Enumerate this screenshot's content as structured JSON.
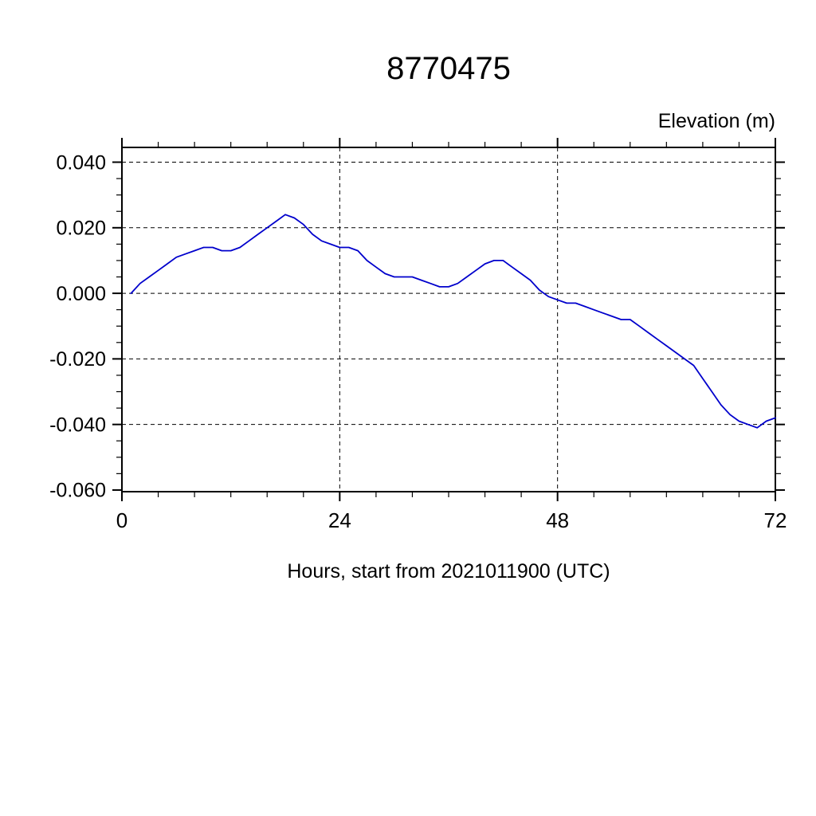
{
  "chart_data": {
    "type": "line",
    "title": "8770475",
    "ylabel": "Elevation (m)",
    "xlabel": "Hours, start from 2021011900 (UTC)",
    "xlim": [
      0,
      72
    ],
    "ylim": [
      -0.0605,
      0.0445
    ],
    "x_major_ticks": [
      0,
      24,
      48,
      72
    ],
    "x_tick_labels": [
      "0",
      "24",
      "48",
      "72"
    ],
    "x_minor_step": 4,
    "y_major_ticks": [
      0.04,
      0.02,
      0.0,
      -0.02,
      -0.04,
      -0.06
    ],
    "y_tick_labels": [
      "0.040",
      "0.020",
      "0.000",
      "-0.020",
      "-0.040",
      "-0.060"
    ],
    "y_minor_step": 0.005,
    "grid": true,
    "legend": "none",
    "line_color": "#0000cc",
    "series": [
      {
        "name": "elevation",
        "x": [
          1,
          2,
          3,
          4,
          5,
          6,
          7,
          8,
          9,
          10,
          11,
          12,
          13,
          14,
          15,
          16,
          17,
          18,
          19,
          20,
          21,
          22,
          23,
          24,
          25,
          26,
          27,
          28,
          29,
          30,
          31,
          32,
          33,
          34,
          35,
          36,
          37,
          38,
          39,
          40,
          41,
          42,
          43,
          44,
          45,
          46,
          47,
          48,
          49,
          50,
          51,
          52,
          53,
          54,
          55,
          56,
          57,
          58,
          59,
          60,
          61,
          62,
          63,
          64,
          65,
          66,
          67,
          68,
          69,
          70,
          71,
          72
        ],
        "y": [
          0.0,
          0.003,
          0.005,
          0.007,
          0.009,
          0.011,
          0.012,
          0.013,
          0.014,
          0.014,
          0.013,
          0.013,
          0.014,
          0.016,
          0.018,
          0.02,
          0.022,
          0.024,
          0.023,
          0.021,
          0.018,
          0.016,
          0.015,
          0.014,
          0.014,
          0.013,
          0.01,
          0.008,
          0.006,
          0.005,
          0.005,
          0.005,
          0.004,
          0.003,
          0.002,
          0.002,
          0.003,
          0.005,
          0.007,
          0.009,
          0.01,
          0.01,
          0.008,
          0.006,
          0.004,
          0.001,
          -0.001,
          -0.002,
          -0.003,
          -0.003,
          -0.004,
          -0.005,
          -0.006,
          -0.007,
          -0.008,
          -0.008,
          -0.01,
          -0.012,
          -0.014,
          -0.016,
          -0.018,
          -0.02,
          -0.022,
          -0.026,
          -0.03,
          -0.034,
          -0.037,
          -0.039,
          -0.04,
          -0.041,
          -0.039,
          -0.038
        ]
      }
    ]
  }
}
